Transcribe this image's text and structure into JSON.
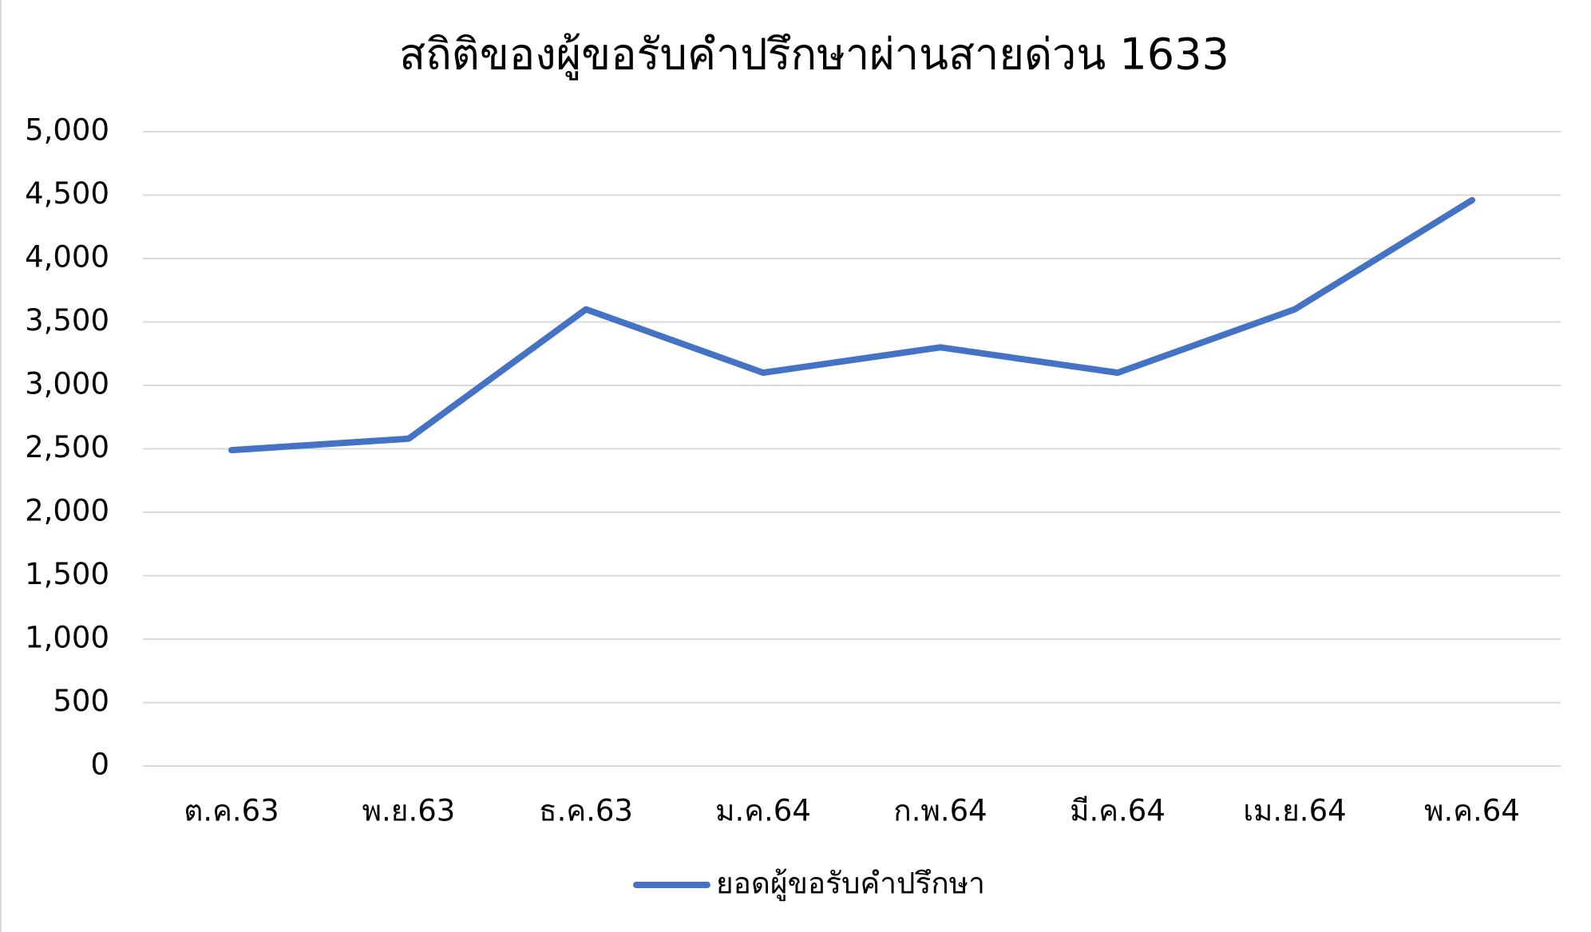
{
  "chart_data": {
    "type": "line",
    "title": "สถิติของผู้ขอรับคำปรึกษาผ่านสายด่วน 1633",
    "categories": [
      "ต.ค.63",
      "พ.ย.63",
      "ธ.ค.63",
      "ม.ค.64",
      "ก.พ.64",
      "มี.ค.64",
      "เม.ย.64",
      "พ.ค.64"
    ],
    "series": [
      {
        "name": "ยอดผู้ขอรับคำปรึกษา",
        "color": "#4472c4",
        "values": [
          2490,
          2580,
          3600,
          3100,
          3300,
          3100,
          3600,
          4460
        ]
      }
    ],
    "ylim": [
      0,
      5000
    ],
    "yticks": [
      0,
      500,
      {
        "value": 1000,
        "label": "1,000"
      },
      {
        "value": 1500,
        "label": "1,500"
      },
      {
        "value": 2000,
        "label": "2,000"
      },
      {
        "value": 2500,
        "label": "2,500"
      },
      {
        "value": 3000,
        "label": "3,000"
      },
      {
        "value": 3500,
        "label": "3,500"
      },
      {
        "value": 4000,
        "label": "4,000"
      },
      {
        "value": 4500,
        "label": "4,500"
      },
      {
        "value": 5000,
        "label": "5,000"
      }
    ],
    "grid": true,
    "legend": "bottom"
  }
}
